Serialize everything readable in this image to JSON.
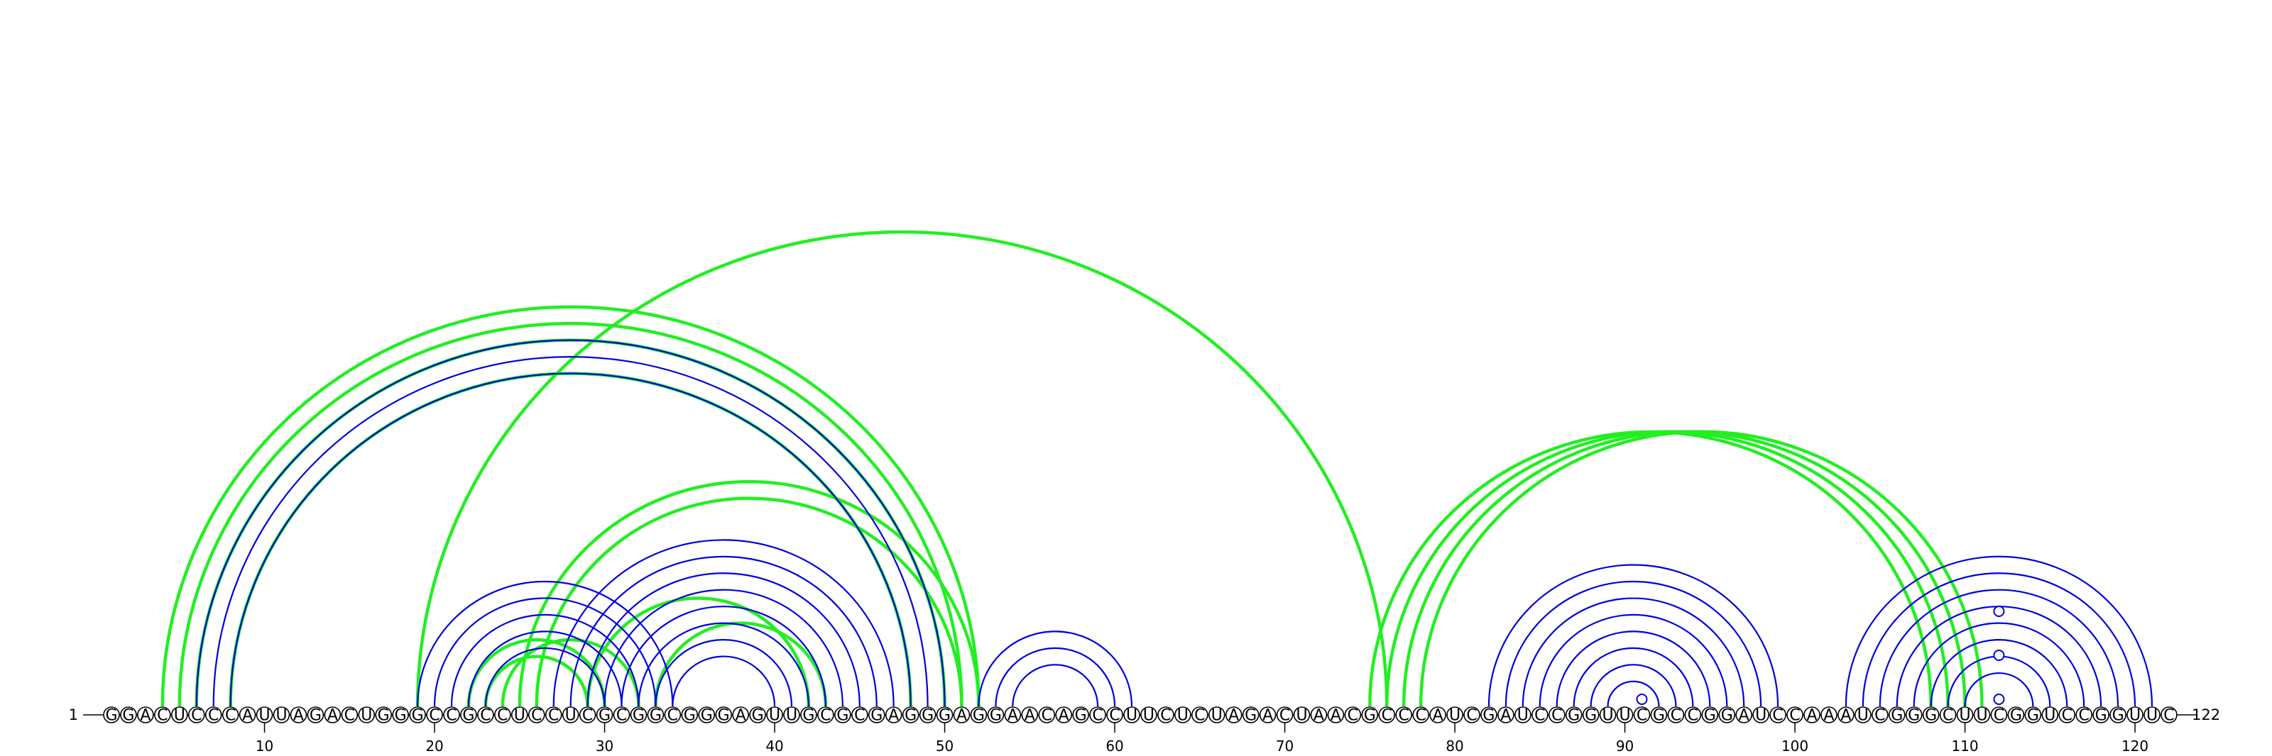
{
  "sequence": "GGACUCCCAUUAGACUGGGCCGCCUCCUCGCGGCGGGAGUUGCGCGAGGGAGGAACAGCCUUCUCUAGACUAACGCCCAUCGAUCCGGUUCGCCGGAUCCAAAUCGGGCUUCGGUCCGGUUC",
  "length": 122,
  "start_label": "1",
  "end_label": "122",
  "ticks": [
    10,
    20,
    30,
    40,
    50,
    60,
    70,
    80,
    90,
    100,
    110,
    120
  ],
  "colors": {
    "blue": "#0000dd",
    "green": "#22ee22",
    "backbone": "#000000"
  },
  "unpaired_markers": [
    {
      "position": 91,
      "height": 1
    },
    {
      "position": 112,
      "height": 1
    },
    {
      "position": 112,
      "height": 3
    },
    {
      "position": 112,
      "height": 5
    }
  ],
  "blue_pairs": [
    [
      6,
      50
    ],
    [
      7,
      49
    ],
    [
      8,
      48
    ],
    [
      19,
      34
    ],
    [
      20,
      33
    ],
    [
      21,
      32
    ],
    [
      22,
      31
    ],
    [
      23,
      30
    ],
    [
      27,
      47
    ],
    [
      28,
      46
    ],
    [
      29,
      45
    ],
    [
      30,
      44
    ],
    [
      31,
      43
    ],
    [
      32,
      42
    ],
    [
      33,
      41
    ],
    [
      34,
      40
    ],
    [
      52,
      61
    ],
    [
      53,
      60
    ],
    [
      54,
      59
    ],
    [
      82,
      99
    ],
    [
      83,
      98
    ],
    [
      84,
      97
    ],
    [
      85,
      96
    ],
    [
      86,
      95
    ],
    [
      87,
      94
    ],
    [
      88,
      93
    ],
    [
      89,
      92
    ],
    [
      103,
      121
    ],
    [
      104,
      120
    ],
    [
      105,
      119
    ],
    [
      106,
      118
    ],
    [
      107,
      117
    ],
    [
      108,
      116
    ],
    [
      109,
      115
    ],
    [
      110,
      114
    ]
  ],
  "green_pairs": [
    [
      4,
      52
    ],
    [
      5,
      51
    ],
    [
      6,
      50
    ],
    [
      8,
      48
    ],
    [
      19,
      76
    ],
    [
      22,
      30
    ],
    [
      23,
      29
    ],
    [
      24,
      32
    ],
    [
      25,
      52
    ],
    [
      26,
      51
    ],
    [
      29,
      42
    ],
    [
      33,
      43
    ],
    [
      75,
      108
    ],
    [
      76,
      109
    ],
    [
      77,
      110
    ],
    [
      78,
      111
    ]
  ]
}
